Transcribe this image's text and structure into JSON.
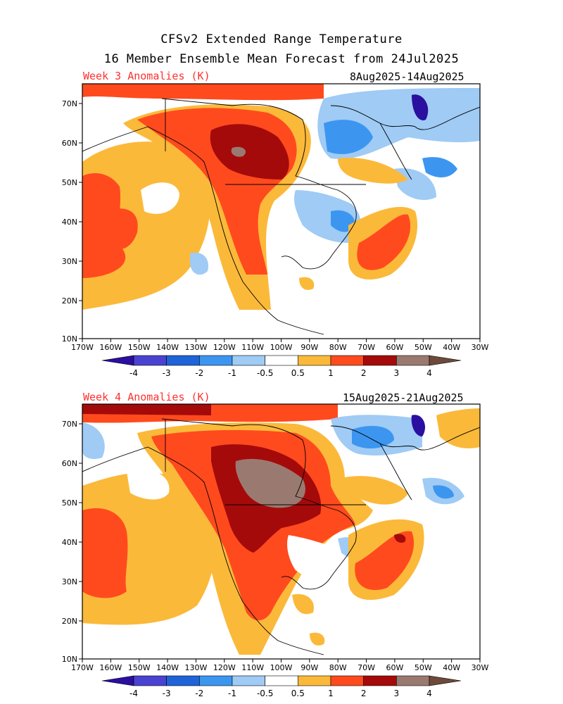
{
  "header": {
    "line1": "CFSv2 Extended Range Temperature",
    "line2": "16 Member Ensemble Mean Forecast from 24Jul2025"
  },
  "panels": [
    {
      "title": "Week 3 Anomalies (K)",
      "dates": "8Aug2025-14Aug2025"
    },
    {
      "title": "Week 4 Anomalies (K)",
      "dates": "15Aug2025-21Aug2025"
    }
  ],
  "axes": {
    "lat_labels": [
      "70N",
      "60N",
      "50N",
      "40N",
      "30N",
      "20N",
      "10N"
    ],
    "lon_labels": [
      "170W",
      "160W",
      "150W",
      "140W",
      "130W",
      "120W",
      "110W",
      "100W",
      "90W",
      "80W",
      "70W",
      "60W",
      "50W",
      "40W",
      "30W"
    ]
  },
  "colorbar": {
    "colors": [
      "#2a0fa0",
      "#4a42d0",
      "#1e64d8",
      "#3c96f0",
      "#9fcbf5",
      "#ffffff",
      "#fbb93a",
      "#ff4a1e",
      "#a50a0a",
      "#9a7a70",
      "#6e4a3c"
    ],
    "labels": [
      "-4",
      "-3",
      "-2",
      "-1",
      "-0.5",
      "0.5",
      "1",
      "2",
      "3",
      "4"
    ]
  },
  "legend_colors": {
    "cool_strong": "#2a0fa0",
    "cool": "#3c96f0",
    "cool_weak": "#9fcbf5",
    "warm_weak": "#fbb93a",
    "warm": "#ff4a1e",
    "warm_strong": "#a50a0a",
    "warm_extreme": "#9a7a70"
  }
}
